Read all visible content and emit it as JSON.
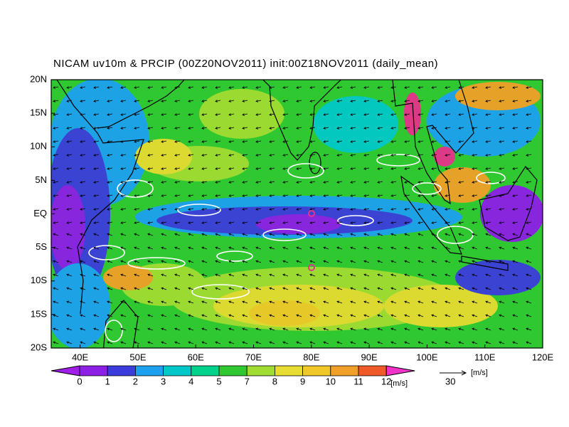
{
  "title": "NICAM uv10m & PRCIP (00Z20NOV2011) init:00Z18NOV2011 (daily_mean)",
  "lat_labels": [
    "20N",
    "15N",
    "10N",
    "5N",
    "EQ",
    "5S",
    "10S",
    "15S",
    "20S"
  ],
  "lon_labels": [
    "40E",
    "50E",
    "60E",
    "70E",
    "80E",
    "90E",
    "100E",
    "110E",
    "120E"
  ],
  "colorbar": {
    "labels": [
      "0",
      "1",
      "2",
      "3",
      "4",
      "5",
      "7",
      "8",
      "9",
      "10",
      "11",
      "12"
    ],
    "unit": "[m/s]"
  },
  "reference_vector": {
    "label": "30",
    "unit": "[m/s]"
  }
}
